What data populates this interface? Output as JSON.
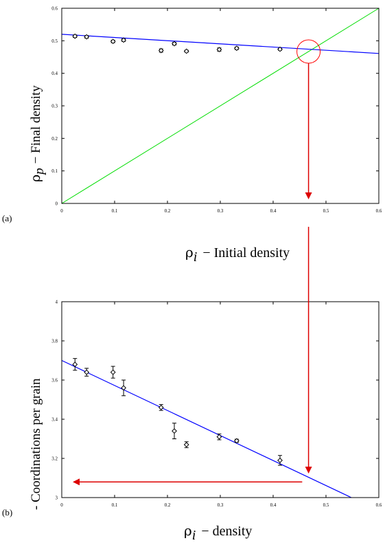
{
  "chart_data": [
    {
      "panel_label": "(a)",
      "type": "scatter",
      "xlabel": "ρi − Initial density",
      "xlabel_symbol": "ρ",
      "xlabel_sub": "i",
      "xlabel_text": "−  Initial density",
      "ylabel_symbol": "ρ",
      "ylabel_sub": "p",
      "ylabel_text": "−  Final density",
      "xlim": [
        0,
        0.6
      ],
      "ylim": [
        0,
        0.6
      ],
      "x_ticks": [
        "0",
        "0.1",
        "0.2",
        "0.3",
        "0.4",
        "0.5",
        "0.6"
      ],
      "y_ticks": [
        "0",
        "0.1",
        "0.2",
        "0.3",
        "0.4",
        "0.5",
        "0.6"
      ],
      "tick_values": [
        0,
        0.1,
        0.2,
        0.3,
        0.4,
        0.5,
        0.6
      ],
      "points": [
        {
          "x": 0.025,
          "y": 0.514,
          "err": 0.004
        },
        {
          "x": 0.047,
          "y": 0.512,
          "err": 0.004
        },
        {
          "x": 0.097,
          "y": 0.498,
          "err": 0.004
        },
        {
          "x": 0.117,
          "y": 0.502,
          "err": 0.004
        },
        {
          "x": 0.188,
          "y": 0.47,
          "err": 0.005
        },
        {
          "x": 0.213,
          "y": 0.491,
          "err": 0.004
        },
        {
          "x": 0.236,
          "y": 0.468,
          "err": 0.003
        },
        {
          "x": 0.298,
          "y": 0.473,
          "err": 0.005
        },
        {
          "x": 0.331,
          "y": 0.477,
          "err": 0.004
        },
        {
          "x": 0.413,
          "y": 0.474,
          "err": 0.003
        }
      ],
      "fit_line": {
        "x": [
          0,
          0.6
        ],
        "y": [
          0.52,
          0.461
        ],
        "color": "#0000ff"
      },
      "identity_line": {
        "x": [
          0,
          0.6
        ],
        "y": [
          0,
          0.6
        ],
        "color": "#00dd00"
      },
      "intersection": {
        "x": 0.467,
        "y": 0.467,
        "color": "#ff0000"
      }
    },
    {
      "panel_label": "(b)",
      "type": "scatter",
      "xlabel": "ρi − density",
      "xlabel_symbol": "ρ",
      "xlabel_sub": "i",
      "xlabel_text": "−  density",
      "ylabel_text": "- Coordinations per grain",
      "xlim": [
        0,
        0.6
      ],
      "ylim": [
        3.0,
        4.0
      ],
      "x_ticks": [
        "0",
        "0.1",
        "0.2",
        "0.3",
        "0.4",
        "0.5",
        "0.6"
      ],
      "x_tick_values": [
        0,
        0.1,
        0.2,
        0.3,
        0.4,
        0.5,
        0.6
      ],
      "y_ticks": [
        "3",
        "3.2",
        "3.4",
        "3.6",
        "3.8",
        "4"
      ],
      "y_tick_values": [
        3.0,
        3.2,
        3.4,
        3.6,
        3.8,
        4.0
      ],
      "points": [
        {
          "x": 0.025,
          "y": 3.68,
          "err": 0.03
        },
        {
          "x": 0.047,
          "y": 3.64,
          "err": 0.02
        },
        {
          "x": 0.097,
          "y": 3.64,
          "err": 0.03
        },
        {
          "x": 0.117,
          "y": 3.56,
          "err": 0.04
        },
        {
          "x": 0.188,
          "y": 3.46,
          "err": 0.015
        },
        {
          "x": 0.213,
          "y": 3.34,
          "err": 0.04
        },
        {
          "x": 0.236,
          "y": 3.27,
          "err": 0.015
        },
        {
          "x": 0.298,
          "y": 3.31,
          "err": 0.015
        },
        {
          "x": 0.331,
          "y": 3.29,
          "err": 0.008
        },
        {
          "x": 0.413,
          "y": 3.19,
          "err": 0.025
        }
      ],
      "fit_line": {
        "x": [
          0,
          0.548
        ],
        "y": [
          3.7,
          3.0
        ],
        "color": "#0000ff"
      }
    }
  ],
  "annotation_color": "#dd0000"
}
